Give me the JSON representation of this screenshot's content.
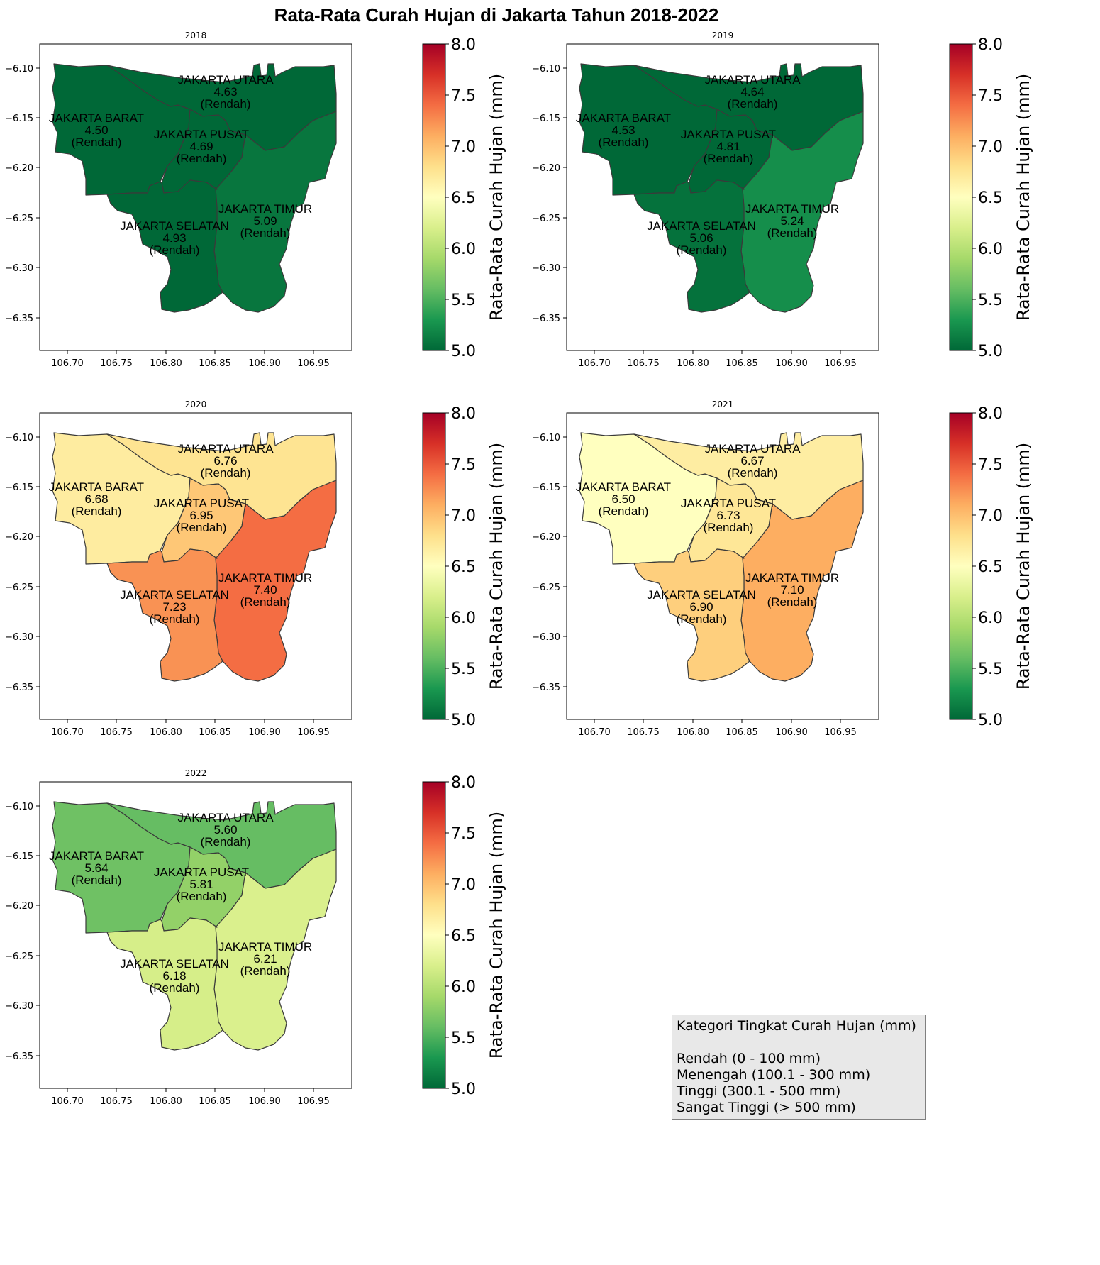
{
  "title": "Rata-Rata Curah Hujan di Jakarta Tahun 2018-2022",
  "colorbar": {
    "label": "Rata-Rata Curah Hujan (mm)",
    "min": 5.0,
    "max": 8.0,
    "ticks": [
      "5.0",
      "5.5",
      "6.0",
      "6.5",
      "7.0",
      "7.5",
      "8.0"
    ],
    "colormap": "RdYlGn_r",
    "stops": [
      "#006837",
      "#1a9850",
      "#66bd63",
      "#a6d96a",
      "#d9ef8b",
      "#ffffbf",
      "#fee08b",
      "#fdae61",
      "#f46d43",
      "#d73027",
      "#a50026"
    ]
  },
  "x_ticks": [
    "106.70",
    "106.75",
    "106.80",
    "106.85",
    "106.90",
    "106.95"
  ],
  "y_ticks": [
    "−6.10",
    "−6.15",
    "−6.20",
    "−6.25",
    "−6.30",
    "−6.35"
  ],
  "region_names": {
    "barat": "JAKARTA BARAT",
    "utara": "JAKARTA UTARA",
    "pusat": "JAKARTA PUSAT",
    "timur": "JAKARTA TIMUR",
    "selatan": "JAKARTA SELATAN"
  },
  "maps": [
    {
      "year": "2018",
      "values": {
        "barat": "4.50",
        "utara": "4.63",
        "pusat": "4.69",
        "timur": "5.09",
        "selatan": "4.93"
      },
      "categories": {
        "barat": "(Rendah)",
        "utara": "(Rendah)",
        "pusat": "(Rendah)",
        "timur": "(Rendah)",
        "selatan": "(Rendah)"
      }
    },
    {
      "year": "2019",
      "values": {
        "barat": "4.53",
        "utara": "4.64",
        "pusat": "4.81",
        "timur": "5.24",
        "selatan": "5.06"
      },
      "categories": {
        "barat": "(Rendah)",
        "utara": "(Rendah)",
        "pusat": "(Rendah)",
        "timur": "(Rendah)",
        "selatan": "(Rendah)"
      }
    },
    {
      "year": "2020",
      "values": {
        "barat": "6.68",
        "utara": "6.76",
        "pusat": "6.95",
        "timur": "7.40",
        "selatan": "7.23"
      },
      "categories": {
        "barat": "(Rendah)",
        "utara": "(Rendah)",
        "pusat": "(Rendah)",
        "timur": "(Rendah)",
        "selatan": "(Rendah)"
      }
    },
    {
      "year": "2021",
      "values": {
        "barat": "6.50",
        "utara": "6.67",
        "pusat": "6.73",
        "timur": "7.10",
        "selatan": "6.90"
      },
      "categories": {
        "barat": "(Rendah)",
        "utara": "(Rendah)",
        "pusat": "(Rendah)",
        "timur": "(Rendah)",
        "selatan": "(Rendah)"
      }
    },
    {
      "year": "2022",
      "values": {
        "barat": "5.64",
        "utara": "5.60",
        "pusat": "5.81",
        "timur": "6.21",
        "selatan": "6.18"
      },
      "categories": {
        "barat": "(Rendah)",
        "utara": "(Rendah)",
        "pusat": "(Rendah)",
        "timur": "(Rendah)",
        "selatan": "(Rendah)"
      }
    }
  ],
  "legend": {
    "title": "Kategori Tingkat Curah Hujan (mm)",
    "items": [
      "Rendah (0 - 100 mm)",
      "Menengah (100.1 - 300 mm)",
      "Tinggi (300.1 - 500 mm)",
      "Sangat Tinggi (> 500 mm)"
    ]
  }
}
